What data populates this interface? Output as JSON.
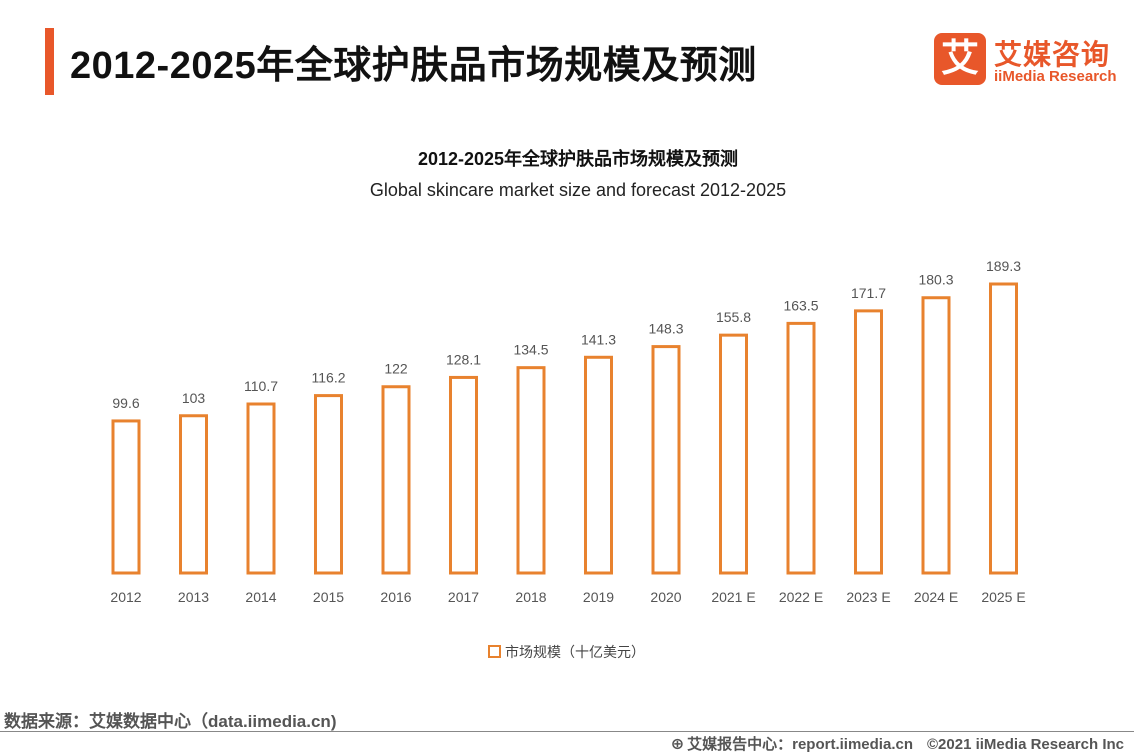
{
  "header": {
    "title": "2012-2025年全球护肤品市场规模及预测"
  },
  "logo": {
    "mark": "艾",
    "name_cn": "艾媒咨询",
    "name_en": "iiMedia Research"
  },
  "colors": {
    "accent": "#e8572a",
    "bar_stroke": "#e8822e"
  },
  "chart_data": {
    "type": "bar",
    "title": "2012-2025年全球护肤品市场规模及预测",
    "subtitle": "Global skincare market size and forecast 2012-2025",
    "categories": [
      "2012",
      "2013",
      "2014",
      "2015",
      "2016",
      "2017",
      "2018",
      "2019",
      "2020",
      "2021 E",
      "2022 E",
      "2023 E",
      "2024 E",
      "2025 E"
    ],
    "series": [
      {
        "name": "市场规模（十亿美元）",
        "values": [
          99.6,
          103,
          110.7,
          116.2,
          122,
          128.1,
          134.5,
          141.3,
          148.3,
          155.8,
          163.5,
          171.7,
          180.3,
          189.3
        ]
      }
    ],
    "value_labels": [
      "99.6",
      "103",
      "110.7",
      "116.2",
      "122",
      "128.1",
      "134.5",
      "141.3",
      "148.3",
      "155.8",
      "163.5",
      "171.7",
      "180.3",
      "189.3"
    ],
    "ylim": [
      0,
      189.3
    ],
    "grid": false,
    "legend_position": "bottom-center"
  },
  "legend": {
    "label": "市场规模（十亿美元）"
  },
  "footer": {
    "source": "数据来源：艾媒数据中心（data.iimedia.cn)",
    "report_center": "艾媒报告中心：report.iimedia.cn",
    "copyright": "©2021  iiMedia Research  Inc"
  }
}
